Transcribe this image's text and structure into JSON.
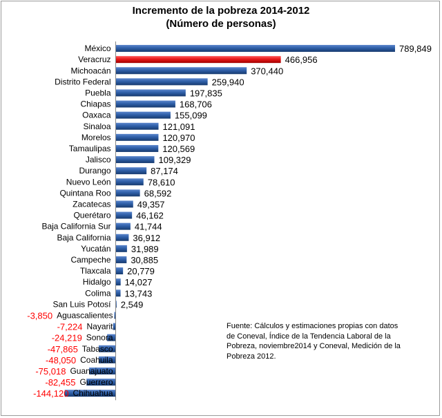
{
  "chart_data": {
    "type": "bar",
    "orientation": "horizontal",
    "title_line1": "Incremento de la pobreza 2014-2012",
    "title_line2": "(Número de personas)",
    "categories": [
      "México",
      "Veracruz",
      "Michoacán",
      "Distrito Federal",
      "Puebla",
      "Chiapas",
      "Oaxaca",
      "Sinaloa",
      "Morelos",
      "Tamaulipas",
      "Jalisco",
      "Durango",
      "Nuevo León",
      "Quintana Roo",
      "Zacatecas",
      "Querétaro",
      "Baja California Sur",
      "Baja California",
      "Yucatán",
      "Campeche",
      "Tlaxcala",
      "Hidalgo",
      "Colima",
      "San Luis Potosí",
      "Aguascalientes",
      "Nayarit",
      "Sonora",
      "Tabasco",
      "Coahuila",
      "Guanajuato",
      "Guerrero",
      "Chihuahua"
    ],
    "values": [
      789849,
      466956,
      370440,
      259940,
      197835,
      168706,
      155099,
      121091,
      120970,
      120569,
      109329,
      87174,
      78610,
      68592,
      49357,
      46162,
      41744,
      36912,
      31989,
      30885,
      20779,
      14027,
      13743,
      2549,
      -3850,
      -7224,
      -24219,
      -47865,
      -48050,
      -75018,
      -82455,
      -144120
    ],
    "value_labels": [
      "789,849",
      "466,956",
      "370,440",
      "259,940",
      "197,835",
      "168,706",
      "155,099",
      "121,091",
      "120,970",
      "120,569",
      "109,329",
      "87,174",
      "78,610",
      "68,592",
      "49,357",
      "46,162",
      "41,744",
      "36,912",
      "31,989",
      "30,885",
      "20,779",
      "14,027",
      "13,743",
      "2,549",
      "-3,850",
      "-7,224",
      "-24,219",
      "-47,865",
      "-48,050",
      "-75,018",
      "-82,455",
      "-144,120"
    ],
    "highlight": "Veracruz",
    "colors": {
      "bar": "#2f5fa8",
      "highlight": "#e81818",
      "negative_label": "#ff0000",
      "label": "#000000"
    },
    "xlabel": "",
    "ylabel": "",
    "legend": "none",
    "source_note": "Fuente: Cálculos y estimaciones propias con datos de Coneval, Índice de la Tendencia Laboral de la Pobreza, noviembre2014 y Coneval, Medición de la Pobreza 2012."
  }
}
